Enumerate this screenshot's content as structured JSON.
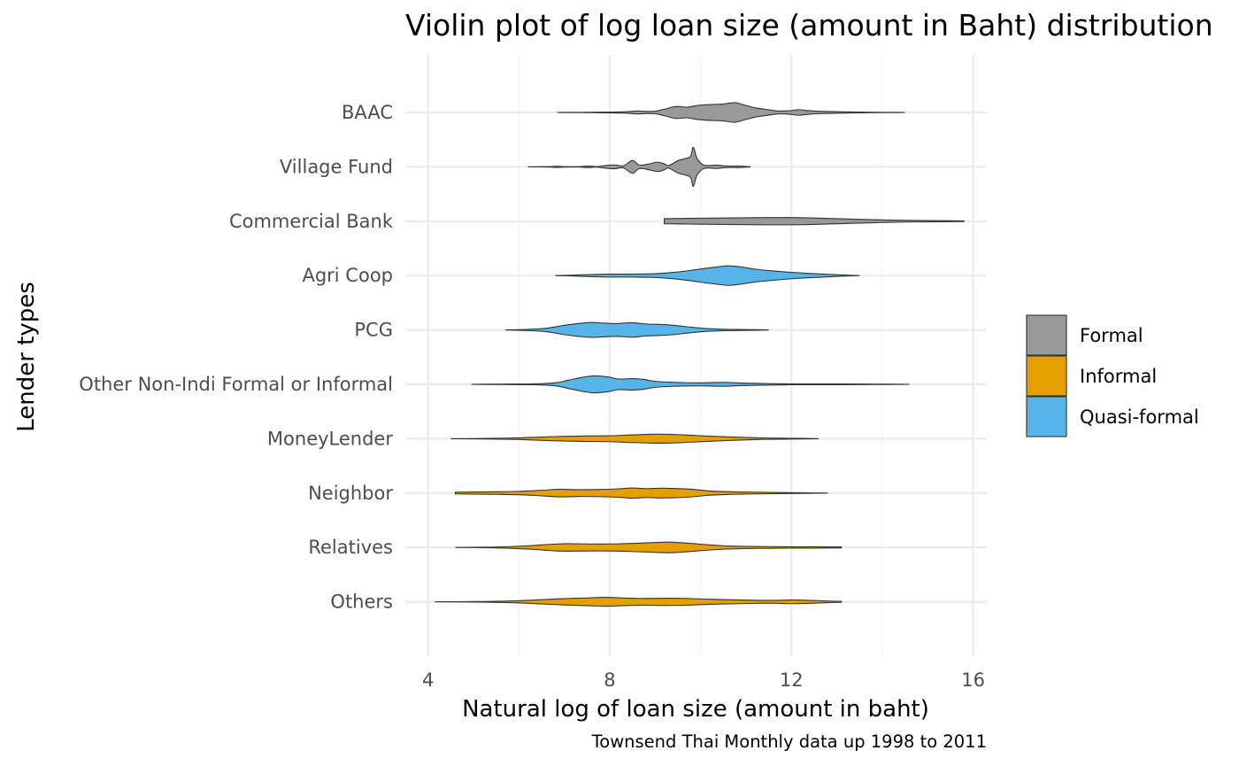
{
  "chart_data": {
    "type": "violin",
    "title": "Violin plot of log loan size (amount in Baht) distribution",
    "xlabel": "Natural log of loan size (amount in baht)",
    "ylabel": "Lender types",
    "caption": "Townsend Thai Monthly data up 1998 to 2011",
    "xlim": [
      3.5,
      16.3
    ],
    "x_ticks": [
      4,
      8,
      12,
      16
    ],
    "x_tick_labels": [
      "4",
      "8",
      "12",
      "16"
    ],
    "grid": true,
    "legend": {
      "position": "right",
      "entries": [
        {
          "label": "Formal",
          "color": "#999999"
        },
        {
          "label": "Informal",
          "color": "#E69F00"
        },
        {
          "label": "Quasi-formal",
          "color": "#56B4E9"
        }
      ]
    },
    "categories": [
      "BAAC",
      "Village Fund",
      "Commercial Bank",
      "Agri Coop",
      "PCG",
      "Other Non-Indi Formal or Informal",
      "MoneyLender",
      "Neighbor",
      "Relatives",
      "Others"
    ],
    "series": [
      {
        "category": "BAAC",
        "group": "Formal",
        "color": "#999999",
        "density": [
          [
            6.85,
            0.0
          ],
          [
            7.6,
            0.01
          ],
          [
            8.3,
            0.03
          ],
          [
            8.6,
            0.07
          ],
          [
            8.8,
            0.05
          ],
          [
            9.0,
            0.06
          ],
          [
            9.2,
            0.15
          ],
          [
            9.45,
            0.28
          ],
          [
            9.7,
            0.25
          ],
          [
            9.9,
            0.32
          ],
          [
            10.1,
            0.36
          ],
          [
            10.3,
            0.38
          ],
          [
            10.5,
            0.4
          ],
          [
            10.75,
            0.46
          ],
          [
            10.95,
            0.36
          ],
          [
            11.2,
            0.22
          ],
          [
            11.45,
            0.14
          ],
          [
            11.7,
            0.07
          ],
          [
            11.95,
            0.08
          ],
          [
            12.15,
            0.13
          ],
          [
            12.4,
            0.08
          ],
          [
            12.7,
            0.05
          ],
          [
            13.2,
            0.03
          ],
          [
            13.8,
            0.01
          ],
          [
            14.5,
            0.0
          ]
        ]
      },
      {
        "category": "Village Fund",
        "group": "Formal",
        "color": "#999999",
        "density": [
          [
            6.2,
            0.0
          ],
          [
            6.7,
            0.01
          ],
          [
            6.85,
            0.03
          ],
          [
            7.0,
            0.01
          ],
          [
            7.35,
            0.01
          ],
          [
            7.55,
            0.04
          ],
          [
            7.7,
            0.01
          ],
          [
            7.9,
            0.06
          ],
          [
            8.1,
            0.09
          ],
          [
            8.3,
            0.05
          ],
          [
            8.5,
            0.3
          ],
          [
            8.65,
            0.08
          ],
          [
            8.85,
            0.13
          ],
          [
            9.05,
            0.22
          ],
          [
            9.2,
            0.14
          ],
          [
            9.3,
            0.06
          ],
          [
            9.5,
            0.29
          ],
          [
            9.65,
            0.38
          ],
          [
            9.78,
            0.5
          ],
          [
            9.84,
            0.92
          ],
          [
            9.92,
            0.4
          ],
          [
            10.05,
            0.1
          ],
          [
            10.2,
            0.06
          ],
          [
            10.35,
            0.08
          ],
          [
            10.5,
            0.05
          ],
          [
            10.7,
            0.03
          ],
          [
            10.85,
            0.04
          ],
          [
            11.1,
            0.0
          ]
        ]
      },
      {
        "category": "Commercial Bank",
        "group": "Formal",
        "color": "#999999",
        "density": [
          [
            9.2,
            0.12
          ],
          [
            9.6,
            0.13
          ],
          [
            10.0,
            0.14
          ],
          [
            10.5,
            0.15
          ],
          [
            11.0,
            0.16
          ],
          [
            11.5,
            0.17
          ],
          [
            12.0,
            0.17
          ],
          [
            12.5,
            0.15
          ],
          [
            13.0,
            0.12
          ],
          [
            13.5,
            0.09
          ],
          [
            14.0,
            0.06
          ],
          [
            14.5,
            0.04
          ],
          [
            15.0,
            0.03
          ],
          [
            15.5,
            0.02
          ],
          [
            15.8,
            0.01
          ]
        ]
      },
      {
        "category": "Agri Coop",
        "group": "Quasi-formal",
        "color": "#56B4E9",
        "density": [
          [
            6.8,
            0.0
          ],
          [
            7.2,
            0.02
          ],
          [
            7.6,
            0.05
          ],
          [
            8.0,
            0.07
          ],
          [
            8.5,
            0.07
          ],
          [
            9.0,
            0.09
          ],
          [
            9.5,
            0.17
          ],
          [
            9.8,
            0.25
          ],
          [
            10.1,
            0.34
          ],
          [
            10.35,
            0.4
          ],
          [
            10.6,
            0.46
          ],
          [
            10.9,
            0.4
          ],
          [
            11.2,
            0.3
          ],
          [
            11.6,
            0.22
          ],
          [
            12.0,
            0.15
          ],
          [
            12.4,
            0.1
          ],
          [
            12.8,
            0.06
          ],
          [
            13.2,
            0.02
          ],
          [
            13.5,
            0.0
          ]
        ]
      },
      {
        "category": "PCG",
        "group": "Quasi-formal",
        "color": "#56B4E9",
        "density": [
          [
            5.7,
            0.0
          ],
          [
            6.2,
            0.03
          ],
          [
            6.6,
            0.08
          ],
          [
            7.0,
            0.22
          ],
          [
            7.3,
            0.3
          ],
          [
            7.6,
            0.35
          ],
          [
            7.9,
            0.32
          ],
          [
            8.15,
            0.3
          ],
          [
            8.5,
            0.34
          ],
          [
            8.8,
            0.28
          ],
          [
            9.1,
            0.26
          ],
          [
            9.4,
            0.22
          ],
          [
            9.7,
            0.15
          ],
          [
            10.1,
            0.07
          ],
          [
            10.6,
            0.03
          ],
          [
            11.0,
            0.02
          ],
          [
            11.5,
            0.0
          ]
        ]
      },
      {
        "category": "Other Non-Indi Formal or Informal",
        "group": "Quasi-formal",
        "color": "#56B4E9",
        "density": [
          [
            4.95,
            0.0
          ],
          [
            5.6,
            0.01
          ],
          [
            6.3,
            0.02
          ],
          [
            6.8,
            0.07
          ],
          [
            7.1,
            0.2
          ],
          [
            7.4,
            0.33
          ],
          [
            7.65,
            0.4
          ],
          [
            7.95,
            0.35
          ],
          [
            8.2,
            0.25
          ],
          [
            8.5,
            0.27
          ],
          [
            8.75,
            0.23
          ],
          [
            9.0,
            0.14
          ],
          [
            9.3,
            0.1
          ],
          [
            9.6,
            0.08
          ],
          [
            10.0,
            0.07
          ],
          [
            10.5,
            0.09
          ],
          [
            10.9,
            0.06
          ],
          [
            11.4,
            0.04
          ],
          [
            12.0,
            0.02
          ],
          [
            13.0,
            0.02
          ],
          [
            13.8,
            0.01
          ],
          [
            14.6,
            0.0
          ]
        ]
      },
      {
        "category": "MoneyLender",
        "group": "Informal",
        "color": "#E69F00",
        "density": [
          [
            4.5,
            0.0
          ],
          [
            5.2,
            0.01
          ],
          [
            6.0,
            0.04
          ],
          [
            6.8,
            0.1
          ],
          [
            7.5,
            0.13
          ],
          [
            8.0,
            0.14
          ],
          [
            8.5,
            0.18
          ],
          [
            9.0,
            0.21
          ],
          [
            9.4,
            0.2
          ],
          [
            9.8,
            0.16
          ],
          [
            10.2,
            0.12
          ],
          [
            10.8,
            0.07
          ],
          [
            11.5,
            0.03
          ],
          [
            12.0,
            0.02
          ],
          [
            12.6,
            0.0
          ]
        ]
      },
      {
        "category": "Neighbor",
        "group": "Informal",
        "color": "#E69F00",
        "density": [
          [
            4.6,
            0.04
          ],
          [
            5.0,
            0.05
          ],
          [
            5.5,
            0.06
          ],
          [
            6.0,
            0.08
          ],
          [
            6.5,
            0.13
          ],
          [
            6.9,
            0.18
          ],
          [
            7.3,
            0.16
          ],
          [
            7.8,
            0.17
          ],
          [
            8.2,
            0.2
          ],
          [
            8.5,
            0.24
          ],
          [
            8.8,
            0.21
          ],
          [
            9.1,
            0.23
          ],
          [
            9.4,
            0.22
          ],
          [
            9.8,
            0.18
          ],
          [
            10.2,
            0.1
          ],
          [
            10.7,
            0.06
          ],
          [
            11.2,
            0.04
          ],
          [
            12.0,
            0.02
          ],
          [
            12.8,
            0.0
          ]
        ]
      },
      {
        "category": "Relatives",
        "group": "Informal",
        "color": "#E69F00",
        "density": [
          [
            4.6,
            0.0
          ],
          [
            5.2,
            0.01
          ],
          [
            5.8,
            0.04
          ],
          [
            6.3,
            0.09
          ],
          [
            6.9,
            0.17
          ],
          [
            7.3,
            0.17
          ],
          [
            7.8,
            0.16
          ],
          [
            8.2,
            0.17
          ],
          [
            8.6,
            0.2
          ],
          [
            9.0,
            0.23
          ],
          [
            9.3,
            0.25
          ],
          [
            9.6,
            0.22
          ],
          [
            10.0,
            0.15
          ],
          [
            10.5,
            0.08
          ],
          [
            11.0,
            0.05
          ],
          [
            11.5,
            0.04
          ],
          [
            12.0,
            0.03
          ],
          [
            12.5,
            0.03
          ],
          [
            13.1,
            0.02
          ]
        ]
      },
      {
        "category": "Others",
        "group": "Informal",
        "color": "#E69F00",
        "density": [
          [
            4.15,
            0.0
          ],
          [
            5.0,
            0.01
          ],
          [
            5.8,
            0.04
          ],
          [
            6.5,
            0.1
          ],
          [
            7.0,
            0.15
          ],
          [
            7.5,
            0.18
          ],
          [
            7.9,
            0.21
          ],
          [
            8.3,
            0.18
          ],
          [
            8.7,
            0.16
          ],
          [
            9.2,
            0.17
          ],
          [
            9.7,
            0.16
          ],
          [
            10.2,
            0.12
          ],
          [
            10.8,
            0.09
          ],
          [
            11.3,
            0.07
          ],
          [
            11.7,
            0.07
          ],
          [
            12.0,
            0.09
          ],
          [
            12.4,
            0.07
          ],
          [
            12.8,
            0.04
          ],
          [
            13.1,
            0.02
          ]
        ]
      }
    ]
  }
}
